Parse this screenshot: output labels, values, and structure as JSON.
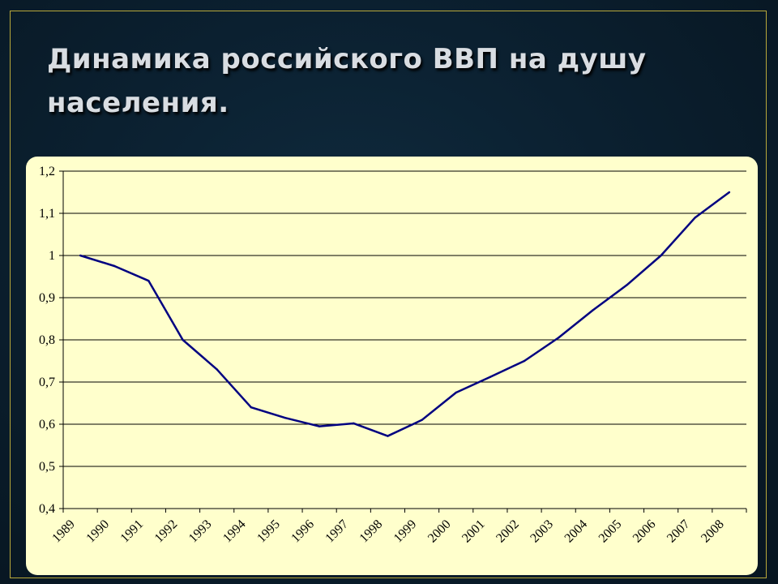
{
  "slide": {
    "title": "Динамика  российского ВВП на душу населения."
  },
  "colors": {
    "background": "#0b2030",
    "frame": "#b8a83a",
    "plot_area": "#ffffcc",
    "line": "#000080"
  },
  "chart_data": {
    "type": "line",
    "title": "",
    "xlabel": "",
    "ylabel": "",
    "categories": [
      "1989",
      "1990",
      "1991",
      "1992",
      "1993",
      "1994",
      "1995",
      "1996",
      "1997",
      "1998",
      "1999",
      "2000",
      "2001",
      "2002",
      "2003",
      "2004",
      "2005",
      "2006",
      "2007",
      "2008"
    ],
    "series": [
      {
        "values": [
          1.0,
          0.975,
          0.94,
          0.8,
          0.73,
          0.64,
          0.615,
          0.595,
          0.602,
          0.572,
          0.61,
          0.675,
          0.712,
          0.75,
          0.805,
          0.87,
          0.93,
          1.0,
          1.09,
          1.15
        ]
      }
    ],
    "ylim": [
      0.4,
      1.2
    ],
    "yticks": [
      "0,4",
      "0,5",
      "0,6",
      "0,7",
      "0,8",
      "0,9",
      "1",
      "1,1",
      "1,2"
    ],
    "grid": true,
    "legend": "none"
  }
}
